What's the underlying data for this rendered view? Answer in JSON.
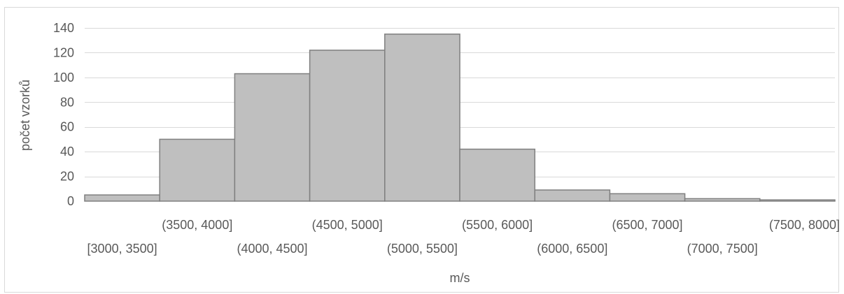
{
  "chart_data": {
    "type": "bar",
    "subtype": "histogram",
    "categories": [
      "[3000, 3500]",
      "(3500, 4000]",
      "(4000, 4500]",
      "(4500, 5000]",
      "(5000, 5500]",
      "(5500, 6000]",
      "(6000, 6500]",
      "(6500, 7000]",
      "(7000, 7500]",
      "(7500, 8000]"
    ],
    "values": [
      5,
      50,
      103,
      122,
      135,
      42,
      9,
      6,
      2,
      1
    ],
    "title": "",
    "xlabel": "m/s",
    "ylabel": "počet vzorků",
    "ylim": [
      0,
      140
    ],
    "yticks": [
      0,
      20,
      40,
      60,
      80,
      100,
      120,
      140
    ],
    "grid": true,
    "legend": "none",
    "colors": {
      "bar_fill": "#bfbfbf",
      "bar_edge": "#7f7f7f",
      "grid": "#d9d9d9",
      "text": "#595959"
    }
  }
}
